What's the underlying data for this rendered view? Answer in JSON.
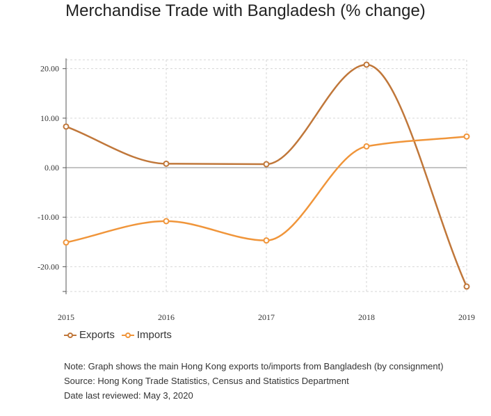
{
  "chart_data": {
    "type": "line",
    "title": "Merchandise Trade with Bangladesh (% change)",
    "x": [
      "2015",
      "2016",
      "2017",
      "2018",
      "2019"
    ],
    "series": [
      {
        "name": "Exports",
        "values": [
          8.3,
          0.8,
          0.7,
          20.8,
          -24.0
        ],
        "color": "#c0773a"
      },
      {
        "name": "Imports",
        "values": [
          -15.1,
          -10.8,
          -14.7,
          4.3,
          6.3
        ],
        "color": "#f0953a"
      }
    ],
    "yticks": [
      "20.00",
      "10.00",
      "0.00",
      "-10.00",
      "-20.00"
    ],
    "ytick_values": [
      20,
      10,
      0,
      -10,
      -20
    ],
    "ylim": [
      -25,
      21.5
    ],
    "grid": true,
    "legend": "bottom-left"
  },
  "notes": {
    "note": "Note: Graph shows the main Hong Kong exports to/imports from Bangladesh (by consignment)",
    "source": "Source: Hong Kong Trade Statistics, Census and Statistics Department",
    "reviewed": "Date last reviewed: May 3, 2020"
  }
}
